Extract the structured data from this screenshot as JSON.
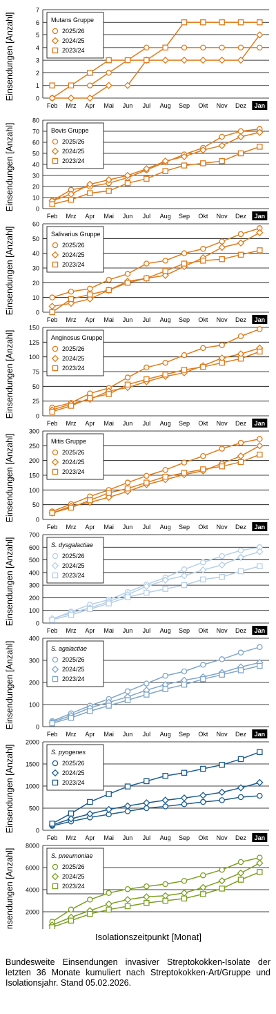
{
  "months": [
    "Feb",
    "Mrz",
    "Apr",
    "Mai",
    "Jun",
    "Jul",
    "Aug",
    "Sep",
    "Okt",
    "Nov",
    "Dez",
    "Jan"
  ],
  "highlight_month": "Jan",
  "ylabel": "Einsendungen [Anzahl]",
  "xlabel": "Isolationszeitpunkt [Monat]",
  "caption": "Bundesweite Einsendungen invasiver Streptokokken-Isolate der letzten 36 Monate kumuliert nach Streptokokken-Art/Gruppe und Isolationsjahr. Stand 05.02.2026.",
  "chart_data": [
    {
      "type": "line",
      "title": "Mutans Gruppe",
      "title_italic": false,
      "color": "#E07B1A",
      "ylim": [
        0,
        7
      ],
      "yticks": [
        0,
        1,
        2,
        3,
        4,
        5,
        6,
        7
      ],
      "x": [
        "Feb",
        "Mrz",
        "Apr",
        "Mai",
        "Jun",
        "Jul",
        "Aug",
        "Sep",
        "Okt",
        "Nov",
        "Dez",
        "Jan"
      ],
      "series": [
        {
          "name": "2025/26",
          "marker": "circle",
          "values": [
            0,
            1,
            1,
            2,
            3,
            4,
            4,
            4,
            4,
            4,
            4,
            4
          ]
        },
        {
          "name": "2024/25",
          "marker": "diamond",
          "values": [
            0,
            0,
            0,
            1,
            1,
            3,
            3,
            3,
            3,
            3,
            3,
            5
          ]
        },
        {
          "name": "2023/24",
          "marker": "square",
          "values": [
            1,
            1,
            2,
            3,
            3,
            3,
            4,
            6,
            6,
            6,
            6,
            6
          ]
        }
      ]
    },
    {
      "type": "line",
      "title": "Bovis Gruppe",
      "title_italic": false,
      "color": "#E07B1A",
      "ylim": [
        0,
        80
      ],
      "yticks": [
        0,
        10,
        20,
        30,
        40,
        50,
        60,
        70,
        80
      ],
      "x": [
        "Feb",
        "Mrz",
        "Apr",
        "Mai",
        "Jun",
        "Jul",
        "Aug",
        "Sep",
        "Okt",
        "Nov",
        "Dez",
        "Jan"
      ],
      "series": [
        {
          "name": "2025/26",
          "marker": "circle",
          "values": [
            7,
            17,
            20,
            23,
            28,
            35,
            42,
            49,
            55,
            65,
            70,
            72
          ]
        },
        {
          "name": "2024/25",
          "marker": "diamond",
          "values": [
            7,
            13,
            22,
            26,
            30,
            36,
            43,
            47,
            53,
            57,
            65,
            69
          ]
        },
        {
          "name": "2023/24",
          "marker": "square",
          "values": [
            4,
            8,
            14,
            16,
            23,
            27,
            34,
            39,
            41,
            43,
            50,
            56
          ]
        }
      ]
    },
    {
      "type": "line",
      "title": "Salivarius Gruppe",
      "title_italic": false,
      "color": "#E07B1A",
      "ylim": [
        0,
        60
      ],
      "yticks": [
        0,
        10,
        20,
        30,
        40,
        50,
        60
      ],
      "x": [
        "Feb",
        "Mrz",
        "Apr",
        "Mai",
        "Jun",
        "Jul",
        "Aug",
        "Sep",
        "Okt",
        "Nov",
        "Dez",
        "Jan"
      ],
      "series": [
        {
          "name": "2025/26",
          "marker": "circle",
          "values": [
            10,
            14,
            16,
            22,
            26,
            33,
            35,
            40,
            43,
            48,
            53,
            57
          ]
        },
        {
          "name": "2024/25",
          "marker": "diamond",
          "values": [
            4,
            6,
            9,
            15,
            21,
            23,
            25,
            31,
            37,
            44,
            47,
            54
          ]
        },
        {
          "name": "2023/24",
          "marker": "square",
          "values": [
            0,
            9,
            12,
            15,
            20,
            23,
            28,
            33,
            35,
            36,
            39,
            42
          ]
        }
      ]
    },
    {
      "type": "line",
      "title": "Anginosus Gruppe",
      "title_italic": false,
      "color": "#E07B1A",
      "ylim": [
        0,
        150
      ],
      "yticks": [
        0,
        25,
        50,
        75,
        100,
        125,
        150
      ],
      "x": [
        "Feb",
        "Mrz",
        "Apr",
        "Mai",
        "Jun",
        "Jul",
        "Aug",
        "Sep",
        "Okt",
        "Nov",
        "Dez",
        "Jan"
      ],
      "series": [
        {
          "name": "2025/26",
          "marker": "circle",
          "values": [
            14,
            22,
            38,
            47,
            65,
            82,
            90,
            103,
            115,
            120,
            135,
            147
          ]
        },
        {
          "name": "2024/25",
          "marker": "diamond",
          "values": [
            10,
            20,
            28,
            42,
            48,
            58,
            67,
            73,
            85,
            98,
            105,
            115
          ]
        },
        {
          "name": "2023/24",
          "marker": "square",
          "values": [
            7,
            17,
            30,
            37,
            53,
            62,
            70,
            78,
            83,
            90,
            97,
            109
          ]
        }
      ]
    },
    {
      "type": "line",
      "title": "Mitis Gruppe",
      "title_italic": false,
      "color": "#E07B1A",
      "ylim": [
        0,
        300
      ],
      "yticks": [
        0,
        50,
        100,
        150,
        200,
        250,
        300
      ],
      "x": [
        "Feb",
        "Mrz",
        "Apr",
        "Mai",
        "Jun",
        "Jul",
        "Aug",
        "Sep",
        "Okt",
        "Nov",
        "Dez",
        "Jan"
      ],
      "series": [
        {
          "name": "2025/26",
          "marker": "circle",
          "values": [
            27,
            52,
            78,
            100,
            125,
            148,
            168,
            193,
            215,
            240,
            260,
            273
          ]
        },
        {
          "name": "2024/25",
          "marker": "diamond",
          "values": [
            22,
            45,
            58,
            75,
            95,
            118,
            135,
            152,
            165,
            190,
            215,
            250
          ]
        },
        {
          "name": "2023/24",
          "marker": "square",
          "values": [
            22,
            40,
            65,
            90,
            105,
            125,
            145,
            158,
            170,
            180,
            195,
            220
          ]
        }
      ]
    },
    {
      "type": "line",
      "title": "S. dysgalactiae",
      "title_italic": true,
      "color": "#B5CFE9",
      "ylim": [
        0,
        700
      ],
      "yticks": [
        0,
        100,
        200,
        300,
        400,
        500,
        600,
        700
      ],
      "x": [
        "Feb",
        "Mrz",
        "Apr",
        "Mai",
        "Jun",
        "Jul",
        "Aug",
        "Sep",
        "Okt",
        "Nov",
        "Dez",
        "Jan"
      ],
      "series": [
        {
          "name": "2025/26",
          "marker": "circle",
          "values": [
            30,
            90,
            145,
            185,
            245,
            305,
            360,
            425,
            480,
            530,
            575,
            600
          ]
        },
        {
          "name": "2024/25",
          "marker": "diamond",
          "values": [
            35,
            80,
            120,
            170,
            225,
            290,
            340,
            375,
            420,
            460,
            520,
            565
          ]
        },
        {
          "name": "2023/24",
          "marker": "square",
          "values": [
            25,
            65,
            110,
            155,
            205,
            240,
            270,
            300,
            345,
            365,
            410,
            450
          ]
        }
      ]
    },
    {
      "type": "line",
      "title": "S. agalactiae",
      "title_italic": true,
      "color": "#7FA6CB",
      "ylim": [
        0,
        400
      ],
      "yticks": [
        0,
        100,
        200,
        300,
        400
      ],
      "x": [
        "Feb",
        "Mrz",
        "Apr",
        "Mai",
        "Jun",
        "Jul",
        "Aug",
        "Sep",
        "Okt",
        "Nov",
        "Dez",
        "Jan"
      ],
      "series": [
        {
          "name": "2025/26",
          "marker": "circle",
          "values": [
            25,
            60,
            95,
            125,
            160,
            195,
            230,
            250,
            280,
            305,
            335,
            360
          ]
        },
        {
          "name": "2024/25",
          "marker": "diamond",
          "values": [
            20,
            50,
            85,
            110,
            135,
            165,
            190,
            210,
            225,
            245,
            270,
            290
          ]
        },
        {
          "name": "2023/24",
          "marker": "square",
          "values": [
            15,
            40,
            70,
            95,
            120,
            145,
            170,
            190,
            215,
            235,
            255,
            275
          ]
        }
      ]
    },
    {
      "type": "line",
      "title": "S. pyogenes",
      "title_italic": true,
      "color": "#1C5C91",
      "ylim": [
        0,
        2000
      ],
      "yticks": [
        0,
        500,
        1000,
        1500,
        2000
      ],
      "x": [
        "Feb",
        "Mrz",
        "Apr",
        "Mai",
        "Jun",
        "Jul",
        "Aug",
        "Sep",
        "Okt",
        "Nov",
        "Dez",
        "Jan"
      ],
      "series": [
        {
          "name": "2025/26",
          "marker": "circle",
          "values": [
            100,
            200,
            290,
            360,
            430,
            500,
            540,
            590,
            640,
            680,
            750,
            780
          ]
        },
        {
          "name": "2024/25",
          "marker": "diamond",
          "values": [
            120,
            260,
            370,
            470,
            550,
            620,
            680,
            730,
            790,
            860,
            960,
            1080
          ]
        },
        {
          "name": "2023/24",
          "marker": "square",
          "values": [
            150,
            380,
            640,
            820,
            990,
            1110,
            1230,
            1300,
            1390,
            1480,
            1610,
            1770
          ]
        }
      ]
    },
    {
      "type": "line",
      "title": "S. pneumoniae",
      "title_italic": true,
      "color": "#7BA021",
      "ylim": [
        0,
        8000
      ],
      "yticks": [
        0,
        2000,
        4000,
        6000,
        8000
      ],
      "x": [
        "Feb",
        "Mrz",
        "Apr",
        "Mai",
        "Jun",
        "Jul",
        "Aug",
        "Sep",
        "Okt",
        "Nov",
        "Dez",
        "Jan"
      ],
      "series": [
        {
          "name": "2025/26",
          "marker": "circle",
          "values": [
            1100,
            2200,
            3100,
            3700,
            4050,
            4300,
            4500,
            4800,
            5300,
            5800,
            6500,
            6900
          ]
        },
        {
          "name": "2024/25",
          "marker": "diamond",
          "values": [
            800,
            1500,
            2100,
            2700,
            3100,
            3350,
            3450,
            3700,
            4200,
            4800,
            5500,
            6400
          ]
        },
        {
          "name": "2023/24",
          "marker": "square",
          "values": [
            600,
            1200,
            1800,
            2200,
            2500,
            2800,
            3000,
            3200,
            3600,
            4100,
            4900,
            5600
          ]
        }
      ]
    }
  ]
}
